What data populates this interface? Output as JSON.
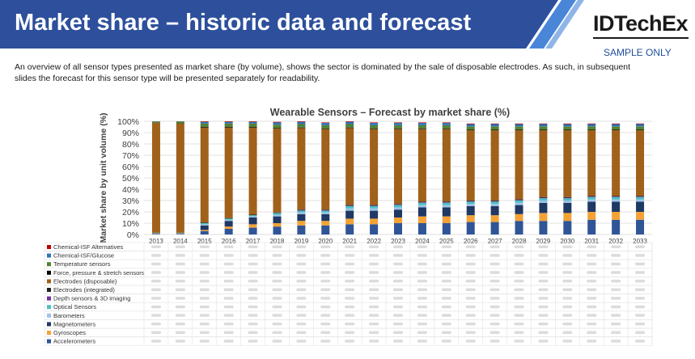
{
  "header": {
    "title": "Market share – historic data and forecast",
    "logo_text": "IDTechEx",
    "sample_label": "SAMPLE ONLY",
    "band_color": "#2d4f9c",
    "stripe_colors": [
      "#4a86d8",
      "#8fb4e8"
    ]
  },
  "description": "An overview of all sensor types presented as market share (by volume), shows the sector is dominated by the sale of disposable electrodes. As such, in subsequent slides the forecast for this sensor type will be presented separately for readability.",
  "chart_data": {
    "type": "bar",
    "stacked": true,
    "title": "Wearable Sensors – Forecast by market share (%)",
    "xlabel": "",
    "ylabel": "Market share by unit volume (%)",
    "ylim": [
      0,
      100
    ],
    "y_ticks": [
      "0%",
      "10%",
      "20%",
      "30%",
      "40%",
      "50%",
      "60%",
      "70%",
      "80%",
      "90%",
      "100%"
    ],
    "grid": true,
    "categories": [
      "2013",
      "2014",
      "2015",
      "2016",
      "2017",
      "2018",
      "2019",
      "2020",
      "2021",
      "2022",
      "2023",
      "2024",
      "2025",
      "2026",
      "2027",
      "2028",
      "2029",
      "2030",
      "2031",
      "2032",
      "2033"
    ],
    "series": [
      {
        "name": "Accelerometers",
        "color": "#2f5597",
        "values": [
          0.5,
          0.5,
          3,
          5,
          6,
          7,
          8,
          8,
          9,
          9,
          10,
          10,
          10,
          11,
          11,
          12,
          12,
          12,
          13,
          13,
          13
        ]
      },
      {
        "name": "Gyroscopes",
        "color": "#f4a235",
        "values": [
          0.2,
          0.2,
          1,
          2,
          3,
          3,
          4,
          4,
          5,
          5,
          5,
          6,
          6,
          6,
          6,
          6,
          7,
          7,
          7,
          7,
          7
        ]
      },
      {
        "name": "Magnetometers",
        "color": "#203864",
        "values": [
          0.3,
          0.3,
          4,
          5,
          6,
          6,
          6,
          6,
          7,
          7,
          7,
          8,
          8,
          8,
          8,
          8,
          9,
          9,
          9,
          9,
          9
        ]
      },
      {
        "name": "Barometers",
        "color": "#9dc3e6",
        "values": [
          0.2,
          0.2,
          1,
          1,
          1,
          1.5,
          1.5,
          1.5,
          2,
          2,
          2,
          2,
          2,
          2,
          2,
          2,
          2,
          2,
          2,
          2,
          2
        ]
      },
      {
        "name": "Optical Sensors",
        "color": "#4bc0c0",
        "values": [
          0.3,
          0.3,
          1,
          1,
          1,
          1.5,
          1.5,
          1.5,
          2,
          2,
          2,
          2,
          2,
          2,
          2,
          2,
          2,
          2,
          2,
          2,
          2
        ]
      },
      {
        "name": "Depth sensors & 3D imaging",
        "color": "#7030a0",
        "values": [
          0,
          0,
          0,
          0,
          0,
          0,
          0.5,
          0.5,
          0.5,
          0.5,
          0.5,
          0.5,
          0.5,
          0.5,
          0.5,
          0.5,
          0.5,
          0.5,
          0.5,
          0.5,
          0.5
        ]
      },
      {
        "name": "Electrodes (integrated)",
        "color": "#1f1f1f",
        "values": [
          0,
          0,
          0.5,
          0.5,
          0.5,
          0.5,
          0.5,
          0.5,
          0.5,
          0.5,
          0.5,
          0.5,
          0.5,
          0.5,
          0.5,
          0.5,
          0.5,
          0.5,
          0.5,
          0.5,
          0.5
        ]
      },
      {
        "name": "Electrodes (disposable)",
        "color": "#a0611a",
        "values": [
          97,
          96.5,
          84,
          80,
          77,
          74,
          72,
          71,
          68,
          67,
          66,
          64,
          64,
          62,
          62,
          61,
          59,
          59,
          58,
          58,
          58
        ]
      },
      {
        "name": "Force, pressure & stretch sensors",
        "color": "#000000",
        "values": [
          0.2,
          0.2,
          0.5,
          0.5,
          0.5,
          0.5,
          0.5,
          0.5,
          0.5,
          0.5,
          0.5,
          0.5,
          0.5,
          0.5,
          0.5,
          0.5,
          0.5,
          0.5,
          0.5,
          0.5,
          0.5
        ]
      },
      {
        "name": "Temperature sensors",
        "color": "#548235",
        "values": [
          1,
          1.5,
          3,
          3,
          3,
          3,
          3,
          3,
          3,
          3,
          3,
          3,
          3,
          3,
          3,
          3,
          3,
          3,
          3,
          3,
          3
        ]
      },
      {
        "name": "Chemical-ISF/Glucose",
        "color": "#2e75b6",
        "values": [
          0.2,
          0.2,
          1.5,
          1.5,
          1.5,
          2,
          2,
          2,
          2,
          2,
          2,
          2,
          2,
          2,
          2,
          2,
          2,
          2,
          2,
          2,
          2
        ]
      },
      {
        "name": "Chemical-ISF Alternatives",
        "color": "#c00000",
        "values": [
          0.1,
          0.1,
          0.5,
          0.5,
          0.5,
          0.5,
          0.5,
          0.5,
          0.5,
          0.5,
          0.5,
          0.5,
          0.5,
          0.5,
          0.5,
          0.5,
          0.5,
          0.5,
          0.5,
          0.5,
          0.5
        ]
      }
    ],
    "table_rows_order": [
      "Chemical-ISF Alternatives",
      "Chemical-ISF/Glucose",
      "Temperature sensors",
      "Force, pressure & stretch sensors",
      "Electrodes (disposable)",
      "Electrodes (integrated)",
      "Depth sensors & 3D imaging",
      "Optical Sensors",
      "Barometers",
      "Magnetometers",
      "Gyroscopes",
      "Accelerometers"
    ],
    "table_note": "data table values blurred"
  }
}
